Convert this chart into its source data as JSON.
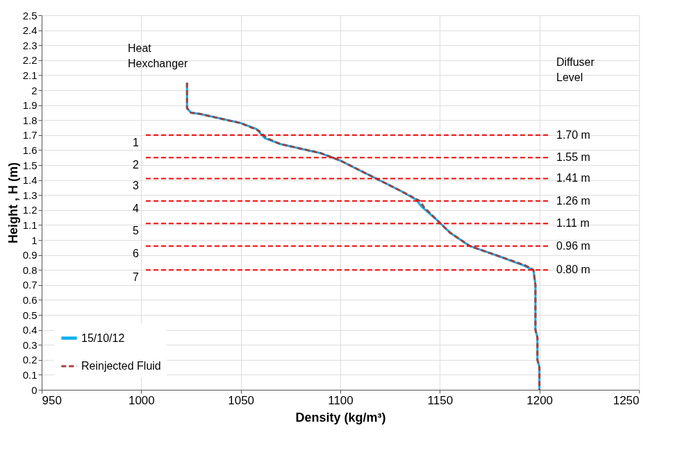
{
  "chart_data": {
    "type": "line",
    "xlabel": "Density (kg/m³)",
    "ylabel": "Height , H (m)",
    "xlim": [
      950,
      1250
    ],
    "xticks": [
      950,
      {
        "value": 1000,
        "label": "1000"
      },
      {
        "value": 1050,
        "label": "1050"
      },
      {
        "value": 1100,
        "label": "1100"
      },
      {
        "value": 1150,
        "label": "1150"
      },
      {
        "value": 1200,
        "label": "1200"
      },
      {
        "value": 1250,
        "label": "1250"
      }
    ],
    "ylim": [
      0,
      2.5
    ],
    "yticks": [
      0,
      0.1,
      0.2,
      0.3,
      0.4,
      0.5,
      0.6,
      0.7,
      0.8,
      0.9,
      1,
      1.1,
      1.2,
      1.3,
      1.4,
      1.5,
      1.6,
      1.7,
      1.8,
      1.9,
      2,
      2.1,
      2.2,
      2.3,
      2.4,
      2.5
    ],
    "grid": true,
    "legend": "bottom left",
    "series": [
      {
        "name": "15/10/12",
        "color": "#00b0f0",
        "line_style": "solid",
        "x": [
          1023,
          1023,
          1025,
          1030,
          1050,
          1058,
          1062,
          1070,
          1090,
          1100,
          1115,
          1130,
          1138,
          1141,
          1148,
          1155,
          1165,
          1180,
          1192,
          1197,
          1198,
          1198,
          1199,
          1199,
          1200,
          1200
        ],
        "values": [
          2.05,
          1.88,
          1.85,
          1.84,
          1.78,
          1.74,
          1.68,
          1.64,
          1.58,
          1.53,
          1.43,
          1.33,
          1.27,
          1.22,
          1.14,
          1.05,
          0.96,
          0.89,
          0.83,
          0.8,
          0.7,
          0.4,
          0.35,
          0.2,
          0.15,
          0
        ]
      },
      {
        "name": "Reinjected Fluid",
        "color": "#a5413d",
        "line_style": "dashed",
        "x": [
          1023,
          1023,
          1025,
          1030,
          1050,
          1059,
          1063,
          1070,
          1090,
          1100,
          1115,
          1130,
          1140,
          1142,
          1148,
          1155,
          1165,
          1180,
          1193,
          1197,
          1198,
          1198,
          1199,
          1199,
          1200,
          1200
        ],
        "values": [
          2.05,
          1.88,
          1.85,
          1.84,
          1.78,
          1.73,
          1.68,
          1.64,
          1.58,
          1.53,
          1.43,
          1.33,
          1.26,
          1.22,
          1.14,
          1.05,
          0.96,
          0.89,
          0.83,
          0.8,
          0.7,
          0.4,
          0.35,
          0.2,
          0.15,
          0
        ]
      }
    ],
    "ref_lines": [
      {
        "axis": "y",
        "value": 1.7,
        "label": "1.70 m",
        "color": "#ff0000",
        "line_style": "dashed"
      },
      {
        "axis": "y",
        "value": 1.55,
        "label": "1.55 m",
        "color": "#ff0000",
        "line_style": "dashed"
      },
      {
        "axis": "y",
        "value": 1.41,
        "label": "1.41 m",
        "color": "#ff0000",
        "line_style": "dashed"
      },
      {
        "axis": "y",
        "value": 1.26,
        "label": "1.26 m",
        "color": "#ff0000",
        "line_style": "dashed"
      },
      {
        "axis": "y",
        "value": 1.11,
        "label": "1.11 m",
        "color": "#ff0000",
        "line_style": "dashed"
      },
      {
        "axis": "y",
        "value": 0.96,
        "label": "0.96 m",
        "color": "#ff0000",
        "line_style": "dashed"
      },
      {
        "axis": "y",
        "value": 0.8,
        "label": "0.80 m",
        "color": "#ff0000",
        "line_style": "dashed"
      }
    ],
    "annotations": [
      "Heat\nHexchanger",
      "Diffuser\nLevel",
      "1",
      "2",
      "3",
      "4",
      "5",
      "6",
      "7"
    ]
  }
}
